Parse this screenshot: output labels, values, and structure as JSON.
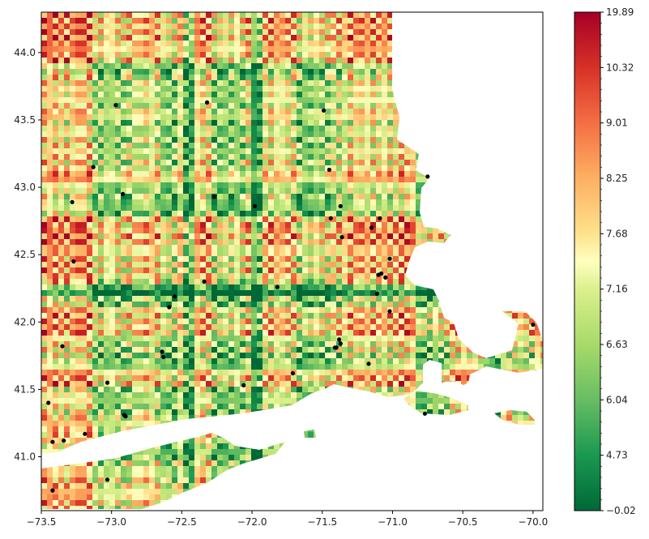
{
  "chart_data": {
    "type": "heatmap",
    "title": "",
    "xlabel": "",
    "ylabel": "",
    "xlim": [
      -73.5,
      -69.93
    ],
    "ylim": [
      40.6,
      44.3
    ],
    "x_ticks": [
      "−73.5",
      "−73.0",
      "−72.5",
      "−72.0",
      "−71.5",
      "−71.0",
      "−70.5",
      "−70.0"
    ],
    "y_ticks": [
      "41.0",
      "41.5",
      "42.0",
      "42.5",
      "43.0",
      "43.5",
      "44.0"
    ],
    "colorbar": {
      "colormap": "RdYlGn_r",
      "tick_labels": [
        "−0.02",
        "4.73",
        "6.04",
        "6.63",
        "7.16",
        "7.68",
        "8.25",
        "9.01",
        "10.32",
        "19.89"
      ],
      "low_color": "#006837",
      "mid_color": "#ffffbf",
      "high_color": "#a50026"
    },
    "stations": {
      "color": "#000000",
      "points": [
        [
          -72.97,
          43.61
        ],
        [
          -72.32,
          43.63
        ],
        [
          -71.49,
          43.57
        ],
        [
          -73.13,
          43.15
        ],
        [
          -71.45,
          43.13
        ],
        [
          -72.92,
          42.95
        ],
        [
          -73.28,
          42.89
        ],
        [
          -72.27,
          42.93
        ],
        [
          -71.98,
          42.86
        ],
        [
          -71.37,
          42.86
        ],
        [
          -71.44,
          42.77
        ],
        [
          -71.09,
          42.77
        ],
        [
          -71.15,
          42.7
        ],
        [
          -71.36,
          42.63
        ],
        [
          -70.75,
          43.08
        ],
        [
          -73.27,
          42.45
        ],
        [
          -71.02,
          42.47
        ],
        [
          -71.08,
          42.36
        ],
        [
          -71.05,
          42.33
        ],
        [
          -71.1,
          42.35
        ],
        [
          -71.82,
          42.26
        ],
        [
          -72.34,
          42.3
        ],
        [
          -72.55,
          42.19
        ],
        [
          -72.59,
          42.11
        ],
        [
          -71.11,
          42.21
        ],
        [
          -71.02,
          42.08
        ],
        [
          -70.0,
          41.98
        ],
        [
          -73.35,
          41.82
        ],
        [
          -72.64,
          41.78
        ],
        [
          -72.63,
          41.74
        ],
        [
          -71.4,
          41.81
        ],
        [
          -71.41,
          41.81
        ],
        [
          -71.38,
          41.87
        ],
        [
          -71.37,
          41.84
        ],
        [
          -71.17,
          41.69
        ],
        [
          -73.03,
          41.55
        ],
        [
          -72.06,
          41.53
        ],
        [
          -71.71,
          41.62
        ],
        [
          -73.45,
          41.4
        ],
        [
          -72.91,
          41.31
        ],
        [
          -72.9,
          41.3
        ],
        [
          -73.19,
          41.17
        ],
        [
          -73.42,
          41.11
        ],
        [
          -73.34,
          41.12
        ],
        [
          -73.03,
          40.83
        ],
        [
          -73.42,
          40.75
        ],
        [
          -70.77,
          41.32
        ]
      ]
    }
  }
}
